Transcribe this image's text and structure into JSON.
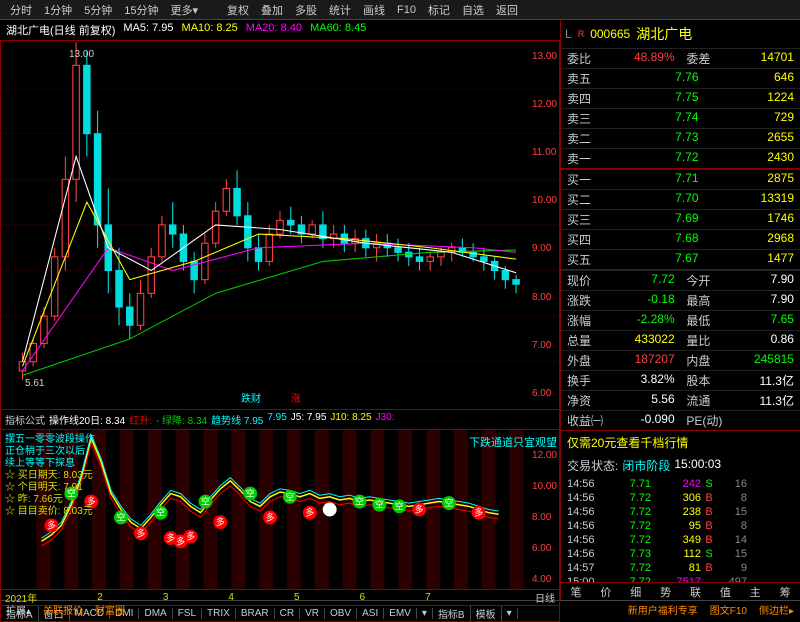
{
  "top_menu": [
    "分时",
    "1分钟",
    "5分钟",
    "15分钟",
    "更多▾",
    "复权",
    "叠加",
    "多股",
    "统计",
    "画线",
    "F10",
    "标记",
    "自选",
    "返回"
  ],
  "stock": {
    "code": "000665",
    "name": "湖北广电",
    "prefix_l": "L",
    "prefix_r": "R"
  },
  "chart_header": {
    "title": "湖北广电(日线 前复权)",
    "ma5": "MA5: 7.95",
    "ma10": "MA10: 8.25",
    "ma20": "MA20: 8.40",
    "ma60": "MA60: 8.45",
    "close": "▯"
  },
  "main_chart": {
    "ylim": [
      5,
      13
    ],
    "yticks": [
      "13.00",
      "12.00",
      "11.00",
      "10.00",
      "9.00",
      "8.00",
      "7.00",
      "6.00"
    ],
    "annot_high": "13.00",
    "annot_low": "5.61",
    "candles": [
      {
        "x": 20,
        "o": 5.8,
        "h": 6.2,
        "l": 5.6,
        "c": 6.0,
        "up": 1
      },
      {
        "x": 30,
        "o": 6.0,
        "h": 6.5,
        "l": 5.9,
        "c": 6.4,
        "up": 1
      },
      {
        "x": 40,
        "o": 6.4,
        "h": 7.2,
        "l": 6.3,
        "c": 7.0,
        "up": 1
      },
      {
        "x": 50,
        "o": 7.0,
        "h": 8.5,
        "l": 6.9,
        "c": 8.3,
        "up": 1
      },
      {
        "x": 60,
        "o": 8.3,
        "h": 10.5,
        "l": 8.0,
        "c": 10.0,
        "up": 1
      },
      {
        "x": 70,
        "o": 10.0,
        "h": 13.0,
        "l": 9.5,
        "c": 12.5,
        "up": 1
      },
      {
        "x": 80,
        "o": 12.5,
        "h": 12.8,
        "l": 10.5,
        "c": 11.0,
        "up": 0
      },
      {
        "x": 90,
        "o": 11.0,
        "h": 11.5,
        "l": 8.5,
        "c": 9.0,
        "up": 0
      },
      {
        "x": 100,
        "o": 9.0,
        "h": 9.8,
        "l": 7.5,
        "c": 8.0,
        "up": 0
      },
      {
        "x": 110,
        "o": 8.0,
        "h": 8.5,
        "l": 6.8,
        "c": 7.2,
        "up": 0
      },
      {
        "x": 120,
        "o": 7.2,
        "h": 7.5,
        "l": 6.5,
        "c": 6.8,
        "up": 0
      },
      {
        "x": 130,
        "o": 6.8,
        "h": 7.8,
        "l": 6.7,
        "c": 7.5,
        "up": 1
      },
      {
        "x": 140,
        "o": 7.5,
        "h": 8.5,
        "l": 7.4,
        "c": 8.3,
        "up": 1
      },
      {
        "x": 150,
        "o": 8.3,
        "h": 9.2,
        "l": 8.2,
        "c": 9.0,
        "up": 1
      },
      {
        "x": 160,
        "o": 9.0,
        "h": 9.5,
        "l": 8.5,
        "c": 8.8,
        "up": 0
      },
      {
        "x": 170,
        "o": 8.8,
        "h": 9.0,
        "l": 8.0,
        "c": 8.2,
        "up": 0
      },
      {
        "x": 180,
        "o": 8.2,
        "h": 8.4,
        "l": 7.5,
        "c": 7.8,
        "up": 0
      },
      {
        "x": 190,
        "o": 7.8,
        "h": 8.8,
        "l": 7.7,
        "c": 8.6,
        "up": 1
      },
      {
        "x": 200,
        "o": 8.6,
        "h": 9.5,
        "l": 8.5,
        "c": 9.3,
        "up": 1
      },
      {
        "x": 210,
        "o": 9.3,
        "h": 10.0,
        "l": 9.2,
        "c": 9.8,
        "up": 1
      },
      {
        "x": 220,
        "o": 9.8,
        "h": 10.2,
        "l": 9.0,
        "c": 9.2,
        "up": 0
      },
      {
        "x": 230,
        "o": 9.2,
        "h": 9.5,
        "l": 8.2,
        "c": 8.5,
        "up": 0
      },
      {
        "x": 240,
        "o": 8.5,
        "h": 8.8,
        "l": 8.0,
        "c": 8.2,
        "up": 0
      },
      {
        "x": 250,
        "o": 8.2,
        "h": 9.0,
        "l": 8.1,
        "c": 8.8,
        "up": 1
      },
      {
        "x": 260,
        "o": 8.8,
        "h": 9.3,
        "l": 8.7,
        "c": 9.1,
        "up": 1
      },
      {
        "x": 270,
        "o": 9.1,
        "h": 9.4,
        "l": 8.8,
        "c": 9.0,
        "up": 0
      },
      {
        "x": 280,
        "o": 9.0,
        "h": 9.2,
        "l": 8.6,
        "c": 8.8,
        "up": 0
      },
      {
        "x": 290,
        "o": 8.8,
        "h": 9.1,
        "l": 8.7,
        "c": 9.0,
        "up": 1
      },
      {
        "x": 300,
        "o": 9.0,
        "h": 9.3,
        "l": 8.5,
        "c": 8.7,
        "up": 0
      },
      {
        "x": 310,
        "o": 8.7,
        "h": 9.0,
        "l": 8.5,
        "c": 8.8,
        "up": 1
      },
      {
        "x": 320,
        "o": 8.8,
        "h": 9.0,
        "l": 8.4,
        "c": 8.6,
        "up": 0
      },
      {
        "x": 330,
        "o": 8.6,
        "h": 8.9,
        "l": 8.4,
        "c": 8.7,
        "up": 1
      },
      {
        "x": 340,
        "o": 8.7,
        "h": 8.9,
        "l": 8.3,
        "c": 8.5,
        "up": 0
      },
      {
        "x": 350,
        "o": 8.5,
        "h": 8.8,
        "l": 8.2,
        "c": 8.6,
        "up": 1
      },
      {
        "x": 360,
        "o": 8.6,
        "h": 8.8,
        "l": 8.3,
        "c": 8.5,
        "up": 0
      },
      {
        "x": 370,
        "o": 8.5,
        "h": 8.7,
        "l": 8.2,
        "c": 8.4,
        "up": 0
      },
      {
        "x": 380,
        "o": 8.4,
        "h": 8.6,
        "l": 8.1,
        "c": 8.3,
        "up": 0
      },
      {
        "x": 390,
        "o": 8.3,
        "h": 8.5,
        "l": 8.0,
        "c": 8.2,
        "up": 0
      },
      {
        "x": 400,
        "o": 8.2,
        "h": 8.4,
        "l": 8.0,
        "c": 8.3,
        "up": 1
      },
      {
        "x": 410,
        "o": 8.3,
        "h": 8.5,
        "l": 8.1,
        "c": 8.4,
        "up": 1
      },
      {
        "x": 420,
        "o": 8.4,
        "h": 8.6,
        "l": 8.2,
        "c": 8.5,
        "up": 1
      },
      {
        "x": 430,
        "o": 8.5,
        "h": 8.7,
        "l": 8.3,
        "c": 8.4,
        "up": 0
      },
      {
        "x": 440,
        "o": 8.4,
        "h": 8.6,
        "l": 8.2,
        "c": 8.3,
        "up": 0
      },
      {
        "x": 450,
        "o": 8.3,
        "h": 8.5,
        "l": 8.0,
        "c": 8.2,
        "up": 0
      },
      {
        "x": 460,
        "o": 8.2,
        "h": 8.3,
        "l": 7.8,
        "c": 8.0,
        "up": 0
      },
      {
        "x": 470,
        "o": 8.0,
        "h": 8.1,
        "l": 7.6,
        "c": 7.8,
        "up": 0
      },
      {
        "x": 480,
        "o": 7.8,
        "h": 7.9,
        "l": 7.5,
        "c": 7.7,
        "up": 0
      }
    ],
    "ma5_line": [
      [
        20,
        6.0
      ],
      [
        70,
        10.5
      ],
      [
        100,
        8.5
      ],
      [
        140,
        8.0
      ],
      [
        200,
        9.0
      ],
      [
        260,
        8.9
      ],
      [
        340,
        8.6
      ],
      [
        420,
        8.4
      ],
      [
        480,
        7.95
      ]
    ],
    "ma10_line": [
      [
        20,
        5.9
      ],
      [
        80,
        9.5
      ],
      [
        120,
        7.8
      ],
      [
        180,
        8.2
      ],
      [
        240,
        8.8
      ],
      [
        320,
        8.7
      ],
      [
        400,
        8.5
      ],
      [
        480,
        8.25
      ]
    ],
    "ma20_line": [
      [
        20,
        5.8
      ],
      [
        100,
        8.5
      ],
      [
        160,
        8.0
      ],
      [
        240,
        8.5
      ],
      [
        340,
        8.6
      ],
      [
        440,
        8.5
      ],
      [
        480,
        8.4
      ]
    ],
    "ma60_line": [
      [
        20,
        5.7
      ],
      [
        120,
        6.5
      ],
      [
        200,
        7.5
      ],
      [
        300,
        8.2
      ],
      [
        400,
        8.4
      ],
      [
        480,
        8.45
      ]
    ],
    "colors": {
      "ma5": "#fff",
      "ma10": "#ff0",
      "ma20": "#f0f",
      "ma60": "#0c0",
      "up": "#ff4040",
      "down": "#00dddd",
      "bg": "#000"
    }
  },
  "indicator_header": {
    "label": "指标公式",
    "items": [
      "操作线20日: 8.34",
      "红升:",
      "- 绿降: 8.34",
      "趋势线 7.95",
      "7.95",
      "J5: 7.95",
      "J10: 8.25",
      "J30:"
    ]
  },
  "sub_chart": {
    "yticks": [
      "12.00",
      "10.00",
      "8.00",
      "6.00",
      "4.00"
    ],
    "right_text": "下跌通道只宜观望",
    "overlay": [
      "摆五一零零波段操作",
      "正仓稍于三次以后",
      "续上等等下探息",
      "买日期天: 8.03元",
      "个目明天: 7.91",
      "昨: 7.66元",
      "目目卖价: 8.03元"
    ],
    "markers": [
      {
        "x": 30,
        "y": 7.0,
        "t": "多",
        "c": "#f00"
      },
      {
        "x": 50,
        "y": 9.0,
        "t": "空",
        "c": "#0c0"
      },
      {
        "x": 70,
        "y": 8.5,
        "t": "多",
        "c": "#f00"
      },
      {
        "x": 100,
        "y": 7.5,
        "t": "空",
        "c": "#0c0"
      },
      {
        "x": 120,
        "y": 6.5,
        "t": "多",
        "c": "#f00"
      },
      {
        "x": 140,
        "y": 7.8,
        "t": "空",
        "c": "#0c0"
      },
      {
        "x": 150,
        "y": 6.2,
        "t": "多",
        "c": "#f00"
      },
      {
        "x": 160,
        "y": 6.0,
        "t": "多",
        "c": "#f00"
      },
      {
        "x": 170,
        "y": 6.3,
        "t": "多",
        "c": "#f00"
      },
      {
        "x": 185,
        "y": 8.5,
        "t": "空",
        "c": "#0c0"
      },
      {
        "x": 200,
        "y": 7.2,
        "t": "多",
        "c": "#f00"
      },
      {
        "x": 230,
        "y": 9.0,
        "t": "空",
        "c": "#0c0"
      },
      {
        "x": 250,
        "y": 7.5,
        "t": "多",
        "c": "#f00"
      },
      {
        "x": 270,
        "y": 8.8,
        "t": "空",
        "c": "#0c0"
      },
      {
        "x": 290,
        "y": 7.8,
        "t": "多",
        "c": "#f00"
      },
      {
        "x": 310,
        "y": 8.0,
        "t": "+",
        "c": "#fff"
      },
      {
        "x": 340,
        "y": 8.5,
        "t": "空",
        "c": "#0c0"
      },
      {
        "x": 360,
        "y": 8.3,
        "t": "空",
        "c": "#0c0"
      },
      {
        "x": 380,
        "y": 8.2,
        "t": "空",
        "c": "#0c0"
      },
      {
        "x": 400,
        "y": 8.0,
        "t": "多",
        "c": "#f00"
      },
      {
        "x": 430,
        "y": 8.4,
        "t": "空",
        "c": "#0c0"
      },
      {
        "x": 460,
        "y": 7.8,
        "t": "多",
        "c": "#f00"
      }
    ]
  },
  "timeline": {
    "year": "2021年",
    "months": [
      "2",
      "3",
      "4",
      "5",
      "6",
      "7"
    ],
    "right": "日线"
  },
  "indicator_tabs": [
    "指标A",
    "窗口",
    "MACD",
    "DMI",
    "DMA",
    "FSL",
    "TRIX",
    "BRAR",
    "CR",
    "VR",
    "OBV",
    "ASI",
    "EMV",
    "▾",
    "指标B",
    "模板",
    "▾"
  ],
  "bottom_bar": {
    "left": [
      "扩展▴",
      "关联报价",
      "财富圈"
    ],
    "right": [
      "新用户福利专享",
      "图文F10",
      "侧边栏▸"
    ]
  },
  "quote_top": {
    "委比": "48.89%",
    "委差": "14701"
  },
  "asks": [
    [
      "卖五",
      "7.76",
      "646"
    ],
    [
      "卖四",
      "7.75",
      "1224"
    ],
    [
      "卖三",
      "7.74",
      "729"
    ],
    [
      "卖二",
      "7.73",
      "2655"
    ],
    [
      "卖一",
      "7.72",
      "2430"
    ]
  ],
  "bids": [
    [
      "买一",
      "7.71",
      "2875"
    ],
    [
      "买二",
      "7.70",
      "13319"
    ],
    [
      "买三",
      "7.69",
      "1746"
    ],
    [
      "买四",
      "7.68",
      "2968"
    ],
    [
      "买五",
      "7.67",
      "1477"
    ]
  ],
  "details": [
    [
      "现价",
      "7.72",
      "今开",
      "7.90",
      "green",
      "white"
    ],
    [
      "涨跌",
      "-0.18",
      "最高",
      "7.90",
      "green",
      "white"
    ],
    [
      "涨幅",
      "-2.28%",
      "最低",
      "7.65",
      "green",
      "green"
    ],
    [
      "总量",
      "433022",
      "量比",
      "0.86",
      "yellow",
      "white"
    ],
    [
      "外盘",
      "187207",
      "内盘",
      "245815",
      "red",
      "green"
    ],
    [
      "换手",
      "3.82%",
      "股本",
      "11.3亿",
      "white",
      "white"
    ],
    [
      "净资",
      "5.56",
      "流通",
      "11.3亿",
      "white",
      "white"
    ],
    [
      "收益㈠",
      "-0.090",
      "PE(动)",
      "",
      "white",
      "white"
    ]
  ],
  "promo": "仅需20元查看千档行情",
  "status": {
    "label": "交易状态:",
    "value": "闭市阶段",
    "time": "15:00:03"
  },
  "trades": [
    [
      "14:56",
      "7.71",
      "242",
      "S",
      "16",
      "green",
      "purple",
      "green"
    ],
    [
      "14:56",
      "7.72",
      "306",
      "B",
      "8",
      "green",
      "yellow",
      "red"
    ],
    [
      "14:56",
      "7.72",
      "238",
      "B",
      "15",
      "green",
      "yellow",
      "red"
    ],
    [
      "14:56",
      "7.72",
      "95",
      "B",
      "8",
      "green",
      "yellow",
      "red"
    ],
    [
      "14:56",
      "7.72",
      "349",
      "B",
      "14",
      "green",
      "yellow",
      "red"
    ],
    [
      "14:56",
      "7.73",
      "112",
      "S",
      "15",
      "green",
      "yellow",
      "green"
    ],
    [
      "14:57",
      "7.72",
      "81",
      "B",
      "9",
      "green",
      "yellow",
      "red"
    ],
    [
      "15:00",
      "7.72",
      "7517",
      "",
      "497",
      "green",
      "purple",
      ""
    ]
  ],
  "right_tabs": [
    "笔",
    "价",
    "细",
    "势",
    "联",
    "值",
    "主",
    "筹"
  ]
}
